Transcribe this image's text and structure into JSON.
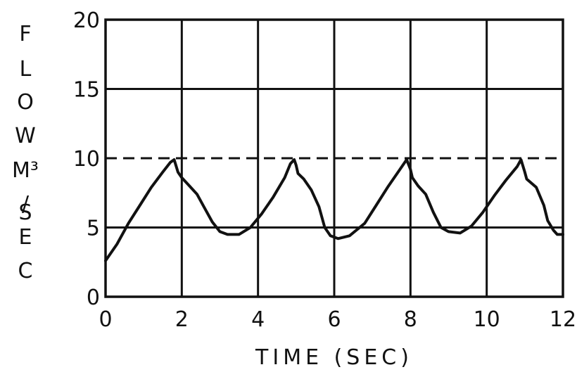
{
  "chart_data": {
    "type": "line",
    "title": "",
    "xlabel": "TIME (SEC)",
    "ylabel_lines": [
      "F",
      "L",
      "O",
      "W",
      "M³",
      "/",
      "S",
      "E",
      "C"
    ],
    "xlim": [
      0,
      12
    ],
    "ylim": [
      0,
      20
    ],
    "x_ticks": [
      0,
      2,
      4,
      6,
      8,
      10,
      12
    ],
    "y_ticks": [
      0,
      5,
      10,
      15,
      20
    ],
    "grid": true,
    "reference_line": {
      "y": 10,
      "style": "dashed"
    },
    "series": [
      {
        "values_xy": [
          [
            0.0,
            2.6
          ],
          [
            0.3,
            3.8
          ],
          [
            0.6,
            5.3
          ],
          [
            0.9,
            6.6
          ],
          [
            1.2,
            7.9
          ],
          [
            1.5,
            9.0
          ],
          [
            1.7,
            9.7
          ],
          [
            1.8,
            9.9
          ],
          [
            1.9,
            9.0
          ],
          [
            2.0,
            8.6
          ],
          [
            2.2,
            8.0
          ],
          [
            2.4,
            7.4
          ],
          [
            2.6,
            6.4
          ],
          [
            2.8,
            5.4
          ],
          [
            3.0,
            4.7
          ],
          [
            3.2,
            4.5
          ],
          [
            3.5,
            4.5
          ],
          [
            3.8,
            5.0
          ],
          [
            4.1,
            6.0
          ],
          [
            4.4,
            7.2
          ],
          [
            4.7,
            8.6
          ],
          [
            4.85,
            9.6
          ],
          [
            4.95,
            9.9
          ],
          [
            5.0,
            9.5
          ],
          [
            5.05,
            8.9
          ],
          [
            5.2,
            8.5
          ],
          [
            5.4,
            7.7
          ],
          [
            5.6,
            6.5
          ],
          [
            5.75,
            5.0
          ],
          [
            5.9,
            4.4
          ],
          [
            6.1,
            4.2
          ],
          [
            6.4,
            4.4
          ],
          [
            6.8,
            5.3
          ],
          [
            7.1,
            6.6
          ],
          [
            7.4,
            7.9
          ],
          [
            7.7,
            9.1
          ],
          [
            7.9,
            9.9
          ],
          [
            8.0,
            9.2
          ],
          [
            8.05,
            8.6
          ],
          [
            8.2,
            8.0
          ],
          [
            8.4,
            7.4
          ],
          [
            8.6,
            6.1
          ],
          [
            8.8,
            5.0
          ],
          [
            9.0,
            4.7
          ],
          [
            9.3,
            4.6
          ],
          [
            9.6,
            5.1
          ],
          [
            9.9,
            6.1
          ],
          [
            10.2,
            7.3
          ],
          [
            10.5,
            8.4
          ],
          [
            10.8,
            9.4
          ],
          [
            10.9,
            9.9
          ],
          [
            11.0,
            9.0
          ],
          [
            11.05,
            8.5
          ],
          [
            11.3,
            7.9
          ],
          [
            11.5,
            6.6
          ],
          [
            11.6,
            5.5
          ],
          [
            11.75,
            4.8
          ],
          [
            11.85,
            4.5
          ],
          [
            12.0,
            4.5
          ]
        ]
      }
    ]
  }
}
